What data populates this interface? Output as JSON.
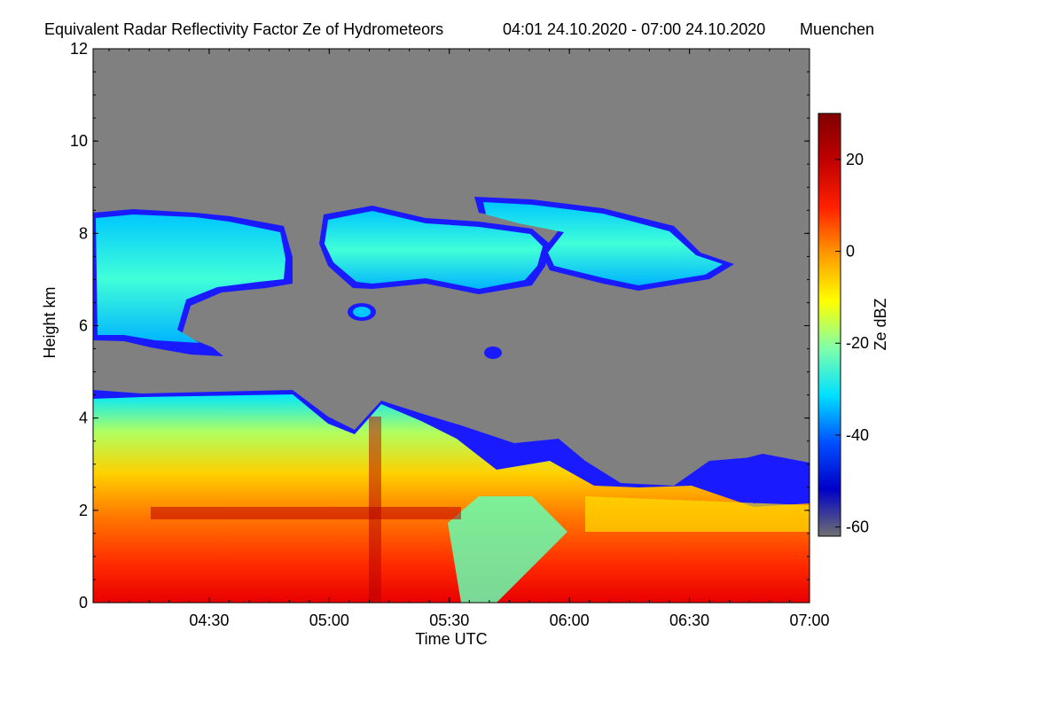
{
  "chart_data": {
    "type": "heatmap",
    "title": "Equivalent Radar Reflectivity Factor Ze of Hydrometeors",
    "time_range_label": "04:01 24.10.2020 - 07:00 24.10.2020",
    "station": "Muenchen",
    "xlabel": "Time UTC",
    "ylabel": "Height km",
    "x_range": [
      "04:01",
      "07:00"
    ],
    "x_ticks": [
      "04:30",
      "05:00",
      "05:30",
      "06:00",
      "06:30",
      "07:00"
    ],
    "y_range": [
      0,
      12
    ],
    "y_ticks": [
      "0",
      "2",
      "4",
      "6",
      "8",
      "10",
      "12"
    ],
    "colorbar": {
      "label": "Ze dBZ",
      "range": [
        -62,
        30
      ],
      "ticks": [
        "-60",
        "-40",
        "-20",
        "0",
        "20"
      ],
      "colormap": [
        "#707070",
        "#0000c8",
        "#0050ff",
        "#00e0ff",
        "#7fffaa",
        "#ffff00",
        "#ff9a00",
        "#ff2000",
        "#c00000",
        "#800000"
      ]
    },
    "background_color": "#808080",
    "regions": [
      {
        "name": "upper cloud layer",
        "x_start": "04:01",
        "x_end": "06:42",
        "height_km": [
          5.4,
          8.7
        ],
        "ze_dbz": [
          -40,
          -20
        ]
      },
      {
        "name": "lower precipitation layer",
        "x_start": "04:01",
        "x_end": "07:00",
        "height_km": [
          0,
          4.5
        ],
        "ze_dbz": [
          -40,
          25
        ]
      },
      {
        "name": "bright band",
        "x_start": "04:15",
        "x_end": "05:30",
        "height_km": [
          1.8,
          2.0
        ],
        "ze_dbz": [
          20,
          30
        ]
      }
    ]
  }
}
